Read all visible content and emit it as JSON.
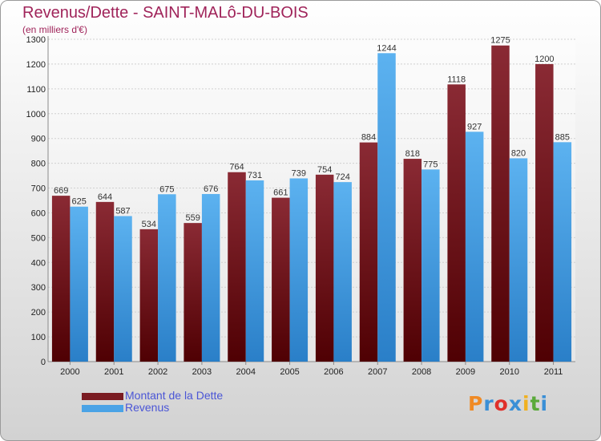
{
  "title": "Revenus/Dette - SAINT-MALô-DU-BOIS",
  "subtitle": "(en milliers d'€)",
  "logo_text": "Proxiti",
  "colors": {
    "dette": "#7a1c22",
    "revenus": "#4aa3e6",
    "title": "#a0245a",
    "legend_text": "#4a55d6",
    "logo": [
      "#f08a24",
      "#3a8fd6",
      "#e0302a",
      "#3a8fd6",
      "#f0b020",
      "#5aaa3a",
      "#3a8fd6"
    ]
  },
  "chart_data": {
    "type": "bar",
    "categories": [
      "2000",
      "2001",
      "2002",
      "2003",
      "2004",
      "2005",
      "2006",
      "2007",
      "2008",
      "2009",
      "2010",
      "2011"
    ],
    "series": [
      {
        "name": "Montant de la Dette",
        "values": [
          669,
          644,
          534,
          559,
          764,
          661,
          754,
          884,
          818,
          1118,
          1275,
          1200
        ]
      },
      {
        "name": "Revenus",
        "values": [
          625,
          587,
          675,
          676,
          731,
          739,
          724,
          1244,
          775,
          927,
          820,
          885
        ]
      }
    ],
    "ylim": [
      0,
      1300
    ],
    "yticks": [
      0,
      100,
      200,
      300,
      400,
      500,
      600,
      700,
      800,
      900,
      1000,
      1100,
      1200,
      1300
    ],
    "grid": true,
    "legend_position": "bottom-left"
  }
}
